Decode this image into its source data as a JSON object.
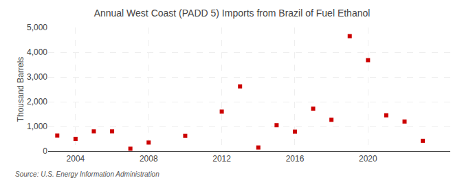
{
  "chart_data": {
    "type": "scatter",
    "title": "Annual West Coast (PADD 5) Imports from Brazil of Fuel Ethanol",
    "ylabel": "Thousand Barrels",
    "annotations": [
      "Source: U.S. Energy Information Administration"
    ],
    "x": [
      2003,
      2004,
      2005,
      2006,
      2007,
      2008,
      2010,
      2012,
      2013,
      2014,
      2015,
      2016,
      2017,
      2018,
      2019,
      2020,
      2021,
      2022,
      2023
    ],
    "values": [
      630,
      500,
      800,
      800,
      100,
      350,
      620,
      1600,
      2620,
      150,
      1050,
      790,
      1720,
      1270,
      4650,
      3680,
      1450,
      1200,
      420
    ],
    "color": "#cc0000",
    "marker": "square",
    "xlim": [
      2002.5,
      2024.5
    ],
    "xticks": [
      2004,
      2008,
      2012,
      2016,
      2020
    ],
    "ylim": [
      0,
      5000
    ],
    "yticks": [
      0,
      {
        "value": 1000,
        "label": "1,000"
      },
      {
        "value": 2000,
        "label": "2,000"
      },
      {
        "value": 3000,
        "label": "3,000"
      },
      {
        "value": 4000,
        "label": "4,000"
      },
      {
        "value": 5000,
        "label": "5,000"
      }
    ],
    "grid": true
  }
}
